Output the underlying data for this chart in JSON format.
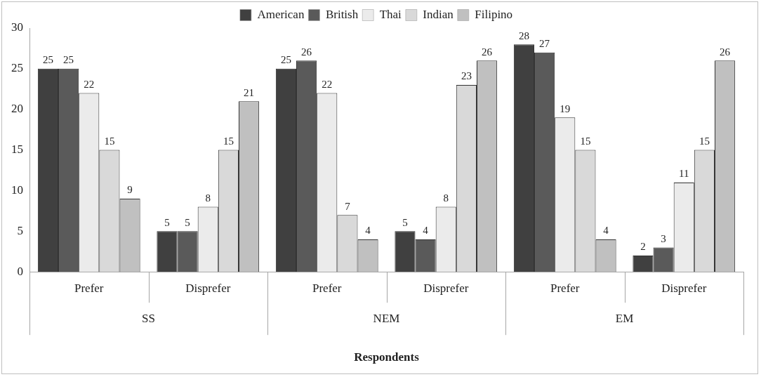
{
  "chart_data": {
    "type": "bar",
    "xlabel": "Respondents",
    "categories": [
      "Prefer",
      "Disprefer",
      "Prefer",
      "Disprefer",
      "Prefer",
      "Disprefer"
    ],
    "annotations": [
      "SS",
      "NEM",
      "EM"
    ],
    "series": [
      {
        "name": "American",
        "color": "#404040",
        "values": [
          25,
          5,
          25,
          5,
          28,
          2
        ]
      },
      {
        "name": "British",
        "color": "#5a5a5a",
        "values": [
          25,
          5,
          26,
          4,
          27,
          3
        ]
      },
      {
        "name": "Thai",
        "color": "#ebebeb",
        "values": [
          22,
          8,
          22,
          8,
          19,
          11
        ]
      },
      {
        "name": "Indian",
        "color": "#d9d9d9",
        "values": [
          15,
          15,
          7,
          23,
          15,
          15
        ]
      },
      {
        "name": "Filipino",
        "color": "#c0c0c0",
        "values": [
          9,
          21,
          4,
          26,
          4,
          26
        ]
      }
    ],
    "ylim": [
      0,
      30
    ],
    "yticks": [
      0,
      5,
      10,
      15,
      20,
      25,
      30
    ],
    "grid": false,
    "legend": "top",
    "data_labels": true
  }
}
